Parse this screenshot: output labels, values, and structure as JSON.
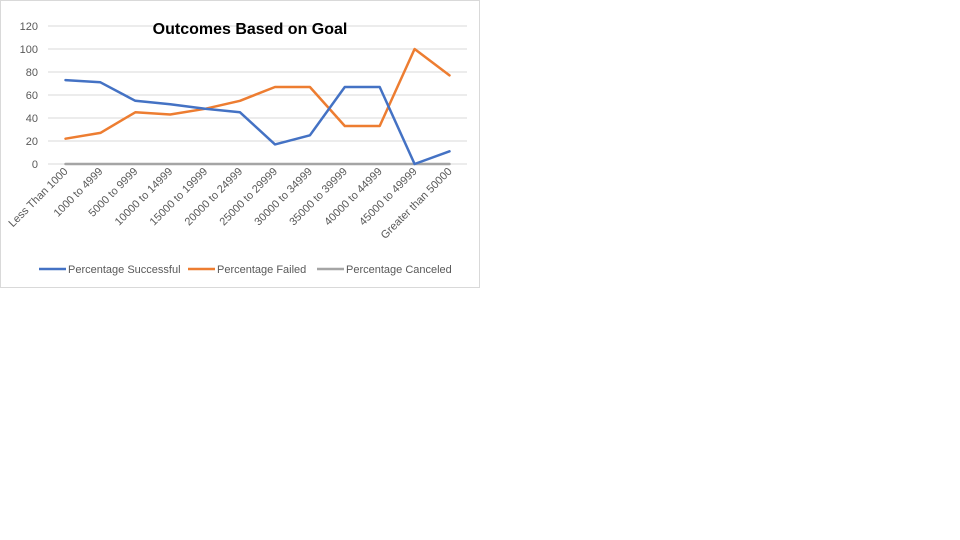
{
  "chart_data": {
    "type": "line",
    "title": "Outcomes Based on Goal",
    "xlabel": "",
    "ylabel": "",
    "ylim": [
      0,
      120
    ],
    "yticks": [
      0,
      20,
      40,
      60,
      80,
      100,
      120
    ],
    "grid": true,
    "legend_position": "bottom",
    "categories": [
      "Less Than 1000",
      "1000 to 4999",
      "5000 to 9999",
      "10000 to 14999",
      "15000 to 19999",
      "20000 to 24999",
      "25000 to 29999",
      "30000 to 34999",
      "35000 to 39999",
      "40000 to 44999",
      "45000 to 49999",
      "Greater than 50000"
    ],
    "series": [
      {
        "name": "Percentage Successful",
        "color": "#4472c4",
        "values": [
          73,
          71,
          55,
          52,
          48,
          45,
          17,
          25,
          67,
          67,
          0,
          11
        ]
      },
      {
        "name": "Percentage Failed",
        "color": "#ed7d31",
        "values": [
          22,
          27,
          45,
          43,
          48,
          55,
          67,
          67,
          33,
          33,
          100,
          77
        ]
      },
      {
        "name": "Percentage Canceled",
        "color": "#a5a5a5",
        "values": [
          0,
          0,
          0,
          0,
          0,
          0,
          0,
          0,
          0,
          0,
          0,
          0
        ]
      }
    ]
  }
}
